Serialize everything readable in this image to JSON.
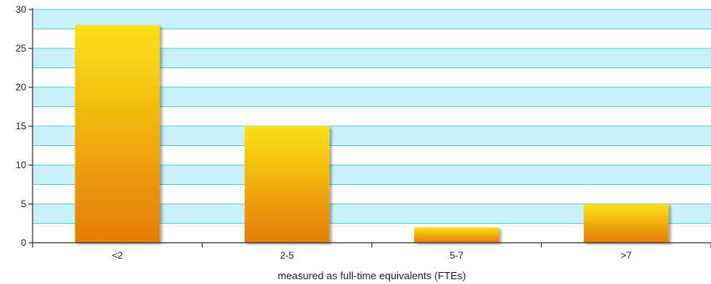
{
  "chart_data": {
    "type": "bar",
    "categories": [
      "<2",
      "2-5",
      "5-7",
      ">7"
    ],
    "values": [
      28,
      15,
      2,
      5
    ],
    "title": "",
    "xlabel": "measured as full-time equivalents (FTEs)",
    "ylabel": "",
    "ylim": [
      0,
      30
    ],
    "yticks": [
      0,
      5,
      10,
      15,
      20,
      25,
      30
    ],
    "grid": true,
    "legend": "none",
    "colors": {
      "bar_top": "#fbe116",
      "bar_bottom": "#e57c05",
      "band_fill": "#c9f0fb",
      "grid_line": "#58cde8",
      "axis": "#333333"
    }
  }
}
